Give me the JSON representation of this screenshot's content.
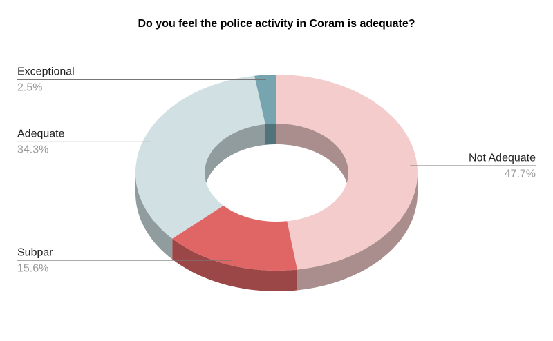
{
  "chart_data": {
    "type": "donut3d",
    "title": "Do you feel the police activity in Coram is adequate?",
    "categories": [
      "Not Adequate",
      "Subpar",
      "Adequate",
      "Exceptional"
    ],
    "values": [
      47.7,
      15.6,
      34.3,
      2.5
    ],
    "value_labels": [
      "47.7%",
      "15.6%",
      "34.3%",
      "2.5%"
    ],
    "colors": [
      "#f4cccc",
      "#e06666",
      "#d0e0e3",
      "#76a5af"
    ],
    "side_colors": [
      "#aa8e8e",
      "#9c4747",
      "#919c9e",
      "#52737a"
    ]
  }
}
